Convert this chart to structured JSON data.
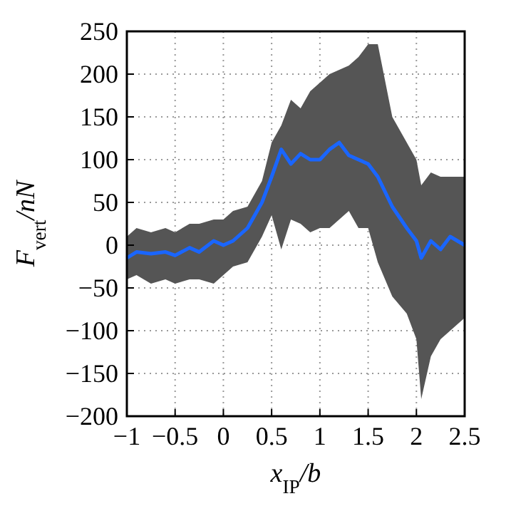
{
  "chart_data": {
    "type": "line",
    "xlabel": "x$_{IP}$/b",
    "ylabel": "F$_{vert}$/nN",
    "xlim": [
      -1,
      2.5
    ],
    "xticks": [
      {
        "value": -1,
        "label": "−1"
      },
      {
        "value": -0.5,
        "label": "−0.5"
      },
      0,
      0.5,
      1,
      1.5,
      2,
      2.5
    ],
    "ylim": [
      -200,
      250
    ],
    "yticks": [
      {
        "value": -200,
        "label": "−200"
      },
      {
        "value": -150,
        "label": "−150"
      },
      {
        "value": -100,
        "label": "−100"
      },
      {
        "value": -50,
        "label": "−50"
      },
      0,
      50,
      100,
      150,
      200,
      250
    ],
    "grid": true,
    "line_style": "solid",
    "marker": "none",
    "series": [
      {
        "color": "#1a66ff",
        "x": [
          -1,
          -0.9,
          -0.75,
          -0.6,
          -0.5,
          -0.35,
          -0.25,
          -0.1,
          0,
          0.1,
          0.25,
          0.4,
          0.5,
          0.6,
          0.7,
          0.8,
          0.9,
          1.0,
          1.1,
          1.2,
          1.3,
          1.4,
          1.5,
          1.6,
          1.75,
          1.9,
          2.0,
          2.05,
          2.15,
          2.25,
          2.35,
          2.5
        ],
        "values": [
          -15,
          -8,
          -10,
          -8,
          -12,
          -3,
          -8,
          5,
          0,
          5,
          20,
          50,
          80,
          112,
          95,
          107,
          100,
          100,
          112,
          120,
          105,
          100,
          95,
          80,
          45,
          20,
          5,
          -15,
          5,
          -5,
          10,
          0
        ],
        "lower": [
          -40,
          -35,
          -45,
          -40,
          -45,
          -40,
          -40,
          -45,
          -35,
          -25,
          -20,
          10,
          35,
          -5,
          30,
          25,
          15,
          20,
          20,
          30,
          40,
          20,
          20,
          -20,
          -60,
          -80,
          -110,
          -180,
          -130,
          -110,
          -100,
          -85
        ],
        "upper": [
          10,
          20,
          15,
          20,
          15,
          25,
          25,
          30,
          30,
          40,
          45,
          75,
          120,
          140,
          170,
          160,
          180,
          190,
          200,
          205,
          210,
          220,
          235,
          235,
          150,
          120,
          100,
          70,
          85,
          80,
          80,
          80
        ]
      }
    ]
  }
}
